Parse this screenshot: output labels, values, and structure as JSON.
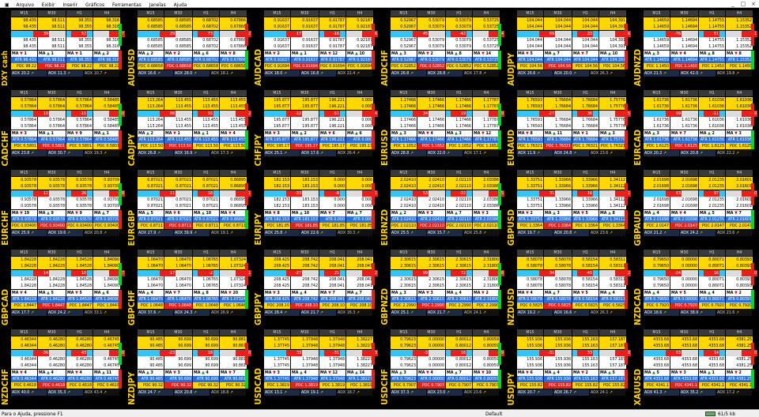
{
  "window": {
    "menus": [
      "Arquivo",
      "Exibir",
      "Inserir",
      "Gráficos",
      "Ferramentas",
      "Janelas",
      "Ajuda"
    ],
    "controls": [
      "_",
      "□",
      "×"
    ]
  },
  "status": {
    "help": "Para o Ajuda, pressione F1",
    "profile": "Default",
    "traffic": "61/5 kb"
  },
  "headers": [
    "M15",
    "M30",
    "H1",
    "H4"
  ],
  "labels": {
    "atr": "ATR",
    "ma": "MA",
    "poc": "POC",
    "adx": "ADX"
  },
  "symbols": [
    "DXY cash",
    "AUDUSD",
    "AUDCAD",
    "AUDCHF",
    "AUDJPY",
    "AUDNZD",
    "CADCHF",
    "CADJPY",
    "CHFJPY",
    "EURUSD",
    "EURAUD",
    "EURCAD",
    "EURCHF",
    "EURGBP",
    "EURJPY",
    "EURNZD",
    "GBPUSD",
    "GBPAUD",
    "GBPCAD",
    "GBPCHF",
    "GBPJPY",
    "GBPNZD",
    "NZDUSD",
    "NZDCAD",
    "NZDCHF",
    "NZDJPY",
    "USDCAD",
    "USDCHF",
    "USDJPY",
    "XAUUSD"
  ],
  "quotes": [
    [
      "98.435",
      "98.511",
      "98.355",
      "98.316"
    ],
    [
      "0.68585",
      "0.68585",
      "0.68702",
      "0.67866"
    ],
    [
      "0.91637",
      "0.91637",
      "0.91787",
      "0.92187"
    ],
    [
      "0.52967",
      "0.53079",
      "0.53079",
      "0.53725"
    ],
    [
      "104.044",
      "104.044",
      "104.044",
      "104.391"
    ],
    [
      "1.14659",
      "1.14694",
      "1.14755",
      "1.15352"
    ],
    [
      "0.57864",
      "0.57864",
      "0.57864",
      "0.58485"
    ],
    [
      "113.264",
      "113.455",
      "113.455",
      "113.455"
    ],
    [
      "195.877",
      "195.877",
      "196.221",
      "0.000"
    ],
    [
      "1.17466",
      "1.17466",
      "1.17466",
      "1.17787"
    ],
    [
      "1.76593",
      "1.76684",
      "1.76684",
      "1.75776"
    ],
    [
      "1.61736",
      "1.61736",
      "1.61036",
      "1.61036"
    ],
    [
      "0.93578",
      "0.93578",
      "0.93578",
      "0.93709"
    ],
    [
      "0.87021",
      "0.87021",
      "0.87021",
      "0.86895"
    ],
    [
      "182.153",
      "183.153",
      "0.000",
      "0.000"
    ],
    [
      "2.02410",
      "2.02410",
      "2.02110",
      "2.03386"
    ],
    [
      "1.33751",
      "1.33966",
      "1.33966",
      "1.34112"
    ],
    [
      "2.01698",
      "2.01698",
      "2.01235",
      "2.01601"
    ],
    [
      "1.84228",
      "1.84228",
      "1.84528",
      "1.84090"
    ],
    [
      "1.06470",
      "1.06470",
      "1.06765",
      "1.07324"
    ],
    [
      "208.425",
      "208.742",
      "208.041",
      "208.041"
    ],
    [
      "2.30615",
      "2.30615",
      "2.30615",
      "2.31800"
    ],
    [
      "0.58078",
      "0.58078",
      "0.58154",
      "0.58311"
    ],
    [
      "0.79650",
      "0.00000",
      "0.80071",
      "0.80393"
    ],
    [
      "0.46344",
      "0.46280",
      "0.46280",
      "0.46745"
    ],
    [
      "90.485",
      "90.699",
      "90.699",
      "90.881"
    ],
    [
      "1.37745",
      "1.37948",
      "1.37948",
      "1.38227"
    ],
    [
      "0.79623",
      "0.00000",
      "0.80012",
      "0.80059"
    ],
    [
      "155.936",
      "155.936",
      "155.163",
      "157.187"
    ],
    [
      "4353.68",
      "4353.68",
      "4353.68",
      "4381.25"
    ]
  ],
  "ma": [
    [
      "1",
      "1",
      "1",
      "2"
    ],
    [
      "2",
      "2",
      "6",
      "8"
    ],
    [
      "2",
      "1",
      "12",
      "10"
    ],
    [
      "3",
      "2",
      "8",
      "14"
    ],
    [
      "5",
      "7",
      "7",
      "10"
    ],
    [
      "3",
      "4",
      "8",
      "8"
    ],
    [
      "3",
      "1",
      "9",
      "1"
    ],
    [
      "2",
      "1",
      "1",
      "4"
    ],
    [
      "3",
      "2",
      "6",
      "6"
    ],
    [
      "3",
      "4",
      "3",
      "12"
    ],
    [
      "8",
      "11",
      "1",
      "3"
    ],
    [
      "3",
      "7",
      "2",
      "3"
    ],
    [
      "19",
      "9",
      "9",
      "7"
    ],
    [
      "5",
      "6",
      "10",
      "4"
    ],
    [
      "8",
      "10",
      "7",
      "7"
    ],
    [
      "2",
      "3",
      "7",
      "3"
    ],
    [
      "2",
      "3",
      "5",
      "8"
    ],
    [
      "4",
      "4",
      "5",
      "7"
    ],
    [
      "4",
      "5",
      "5",
      "6"
    ],
    [
      "4",
      "7",
      "8",
      "20"
    ],
    [
      "3",
      "4",
      "7",
      "7"
    ],
    [
      "3",
      "3",
      "4",
      "2"
    ],
    [
      "4",
      "7",
      "5",
      "4"
    ],
    [
      "4",
      "5",
      "4",
      "2"
    ],
    [
      "4",
      "4",
      "4",
      "11"
    ],
    [
      "3",
      "3",
      "4",
      "7"
    ],
    [
      "3",
      "4",
      "12",
      "14"
    ],
    [
      "3",
      "4",
      "7",
      "10"
    ],
    [
      "6",
      "4",
      "2",
      "5"
    ],
    [
      "5",
      "3",
      "1",
      "2"
    ]
  ],
  "poc": [
    "98.22",
    "0.68658",
    "0.91694",
    "0.52852",
    "104.56",
    "1.1450",
    "0.5801",
    "113.50",
    "195.17",
    "1.1652",
    "1.76321",
    "1.6125",
    "0.93400",
    "0.8711",
    "181.85",
    "2.02110",
    "1.3364",
    "2.0147",
    "1.8447",
    "1.0648",
    "208.10",
    "2.2990",
    "0.5825",
    "0.7920",
    "0.4618",
    "90.32",
    "1.3819",
    "0.7907",
    "155.82",
    "4341.1"
  ],
  "adx": [
    [
      "20.2",
      "11.3",
      "10.7"
    ],
    [
      "16.6",
      "28.0",
      "18.1"
    ],
    [
      "18.0",
      "16.8",
      "22.4"
    ],
    [
      "26.8",
      "28.8",
      "17.8"
    ],
    [
      "26.6",
      "20.0",
      "26.3"
    ],
    [
      "21.5",
      "42.0",
      "19.8"
    ],
    [
      "23.8",
      "30.7",
      "19.3"
    ],
    [
      "26.8",
      "16.9",
      "17.3"
    ],
    [
      "25.1",
      "17.6",
      "26.4"
    ],
    [
      "28.8",
      "22.0",
      "17.1"
    ],
    [
      "11.9",
      "24.8",
      "23.6"
    ],
    [
      "20.2",
      "20.8",
      "22.2"
    ],
    [
      "25.9",
      "19.6",
      "20.8"
    ],
    [
      "27.9",
      "39.9",
      "19.1"
    ],
    [
      "25.8",
      "22.6",
      "30.3"
    ],
    [
      "25.5",
      "15.7",
      "25.8"
    ],
    [
      "19.7",
      "20.8",
      "23.6"
    ],
    [
      "21.2",
      "24.2",
      "23.6"
    ],
    [
      "17.7",
      "24.2",
      "33.1"
    ],
    [
      "37.6",
      "24.3",
      "26.9"
    ],
    [
      "28.4",
      "21.7",
      "16.3"
    ],
    [
      "25.1",
      "21.7",
      "24.1"
    ],
    [
      "19.2",
      "16.6",
      "26.3"
    ],
    [
      "18.6",
      "38.9",
      "21.6"
    ],
    [
      "40.0",
      "35.3",
      "43.4"
    ],
    [
      "24.7",
      "20.8",
      "18.8"
    ],
    [
      "13.1",
      "19.1",
      "18.7"
    ],
    [
      "37.3",
      "23.0",
      "23.6"
    ],
    [
      "20.7",
      "26.7",
      "24.1"
    ],
    [
      "41.3",
      "35.2",
      "17.2"
    ]
  ],
  "deltas": [
    [
      "39",
      "52",
      "-27"
    ],
    [
      "29",
      "73",
      "12"
    ],
    [
      "17",
      "-16",
      "16"
    ],
    [
      "45",
      "-42",
      "14"
    ],
    [
      "69",
      "23",
      "-16"
    ],
    [
      "-76",
      "51",
      "31"
    ],
    [
      "10",
      "-15",
      "10"
    ],
    [
      "88",
      "55",
      "12"
    ],
    [
      "-22",
      "-51",
      "54"
    ],
    [
      "34",
      "19",
      "9"
    ],
    [
      "-27",
      "36",
      "-15"
    ],
    [
      "99",
      "-11",
      "-29"
    ],
    [
      "12",
      "26",
      "-18"
    ],
    [
      "11",
      "18",
      "-21"
    ],
    [
      "-33",
      "-8",
      "21"
    ],
    [
      "53",
      "-32",
      "25"
    ],
    [
      "31",
      "16",
      "-11"
    ],
    [
      "63",
      "97",
      "-30"
    ],
    [
      "14",
      "10",
      "27"
    ],
    [
      "17",
      "-2",
      "31"
    ],
    [
      "-27",
      "21",
      "12"
    ],
    [
      "99",
      "72",
      "-18"
    ],
    [
      "34",
      "-45",
      "22"
    ],
    [
      "-24",
      "16",
      "-20"
    ],
    [
      "-36",
      "43",
      "-10"
    ],
    [
      "-23",
      "18",
      "10"
    ],
    [
      "33",
      "-31",
      "43"
    ],
    [
      "-3",
      "16",
      "-19"
    ],
    [
      "-31",
      "33",
      "10"
    ],
    [
      "63",
      "14",
      "-20"
    ]
  ]
}
